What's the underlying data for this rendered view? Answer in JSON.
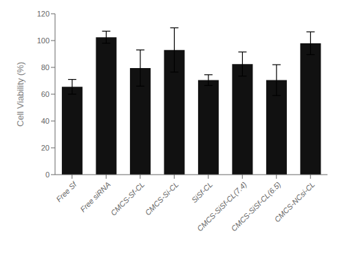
{
  "chart_data": {
    "type": "bar",
    "categories": [
      "Free Sf",
      "Free siRNA",
      "CMCS-Sf-CL",
      "CMCS-Si-CL",
      "SiSf-CL",
      "CMCS-SiSf-CL(7.4)",
      "CMCS-SiSf-CL(6.5)",
      "CMCS-NCsi-CL"
    ],
    "values": [
      65.5,
      102.5,
      79.5,
      93.0,
      70.5,
      82.5,
      70.5,
      98.0
    ],
    "errors": [
      5.5,
      4.5,
      13.5,
      16.5,
      4.0,
      9.0,
      11.5,
      8.5
    ],
    "color": "#111111",
    "ylabel": "Cell Viability (%)",
    "ylim": [
      0,
      120
    ],
    "yticks": [
      0,
      20,
      40,
      60,
      80,
      100,
      120
    ],
    "grid": false
  }
}
